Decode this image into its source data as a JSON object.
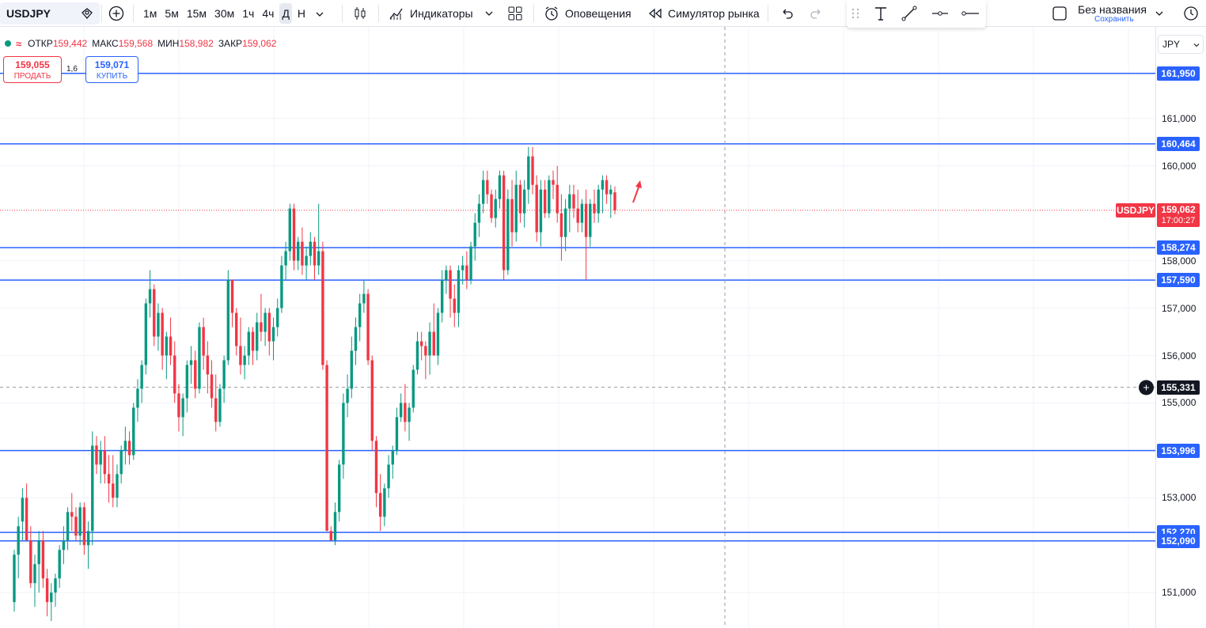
{
  "toolbar": {
    "symbol": "USDJPY",
    "intervals": [
      "1м",
      "5м",
      "15м",
      "30м",
      "1ч",
      "4ч",
      "Д",
      "Н"
    ],
    "active_interval": "Д",
    "indicators_label": "Индикаторы",
    "alerts_label": "Оповещения",
    "replay_label": "Симулятор рынка",
    "layout_name": "Без названия",
    "save_label": "Сохранить"
  },
  "legend": {
    "open_label": "ОТКР",
    "open": "159,442",
    "high_label": "МАКС",
    "high": "159,568",
    "low_label": "МИН",
    "low": "158,982",
    "close_label": "ЗАКР",
    "close": "159,062"
  },
  "trade": {
    "sell_price": "159,055",
    "sell_label": "ПРОДАТЬ",
    "buy_price": "159,071",
    "buy_label": "КУПИТЬ",
    "spread": "1,6"
  },
  "scale": {
    "currency": "JPY",
    "ticks": [
      {
        "label": "161,000",
        "value": 161.0
      },
      {
        "label": "160,000",
        "value": 160.0
      },
      {
        "label": "158,000",
        "value": 158.0
      },
      {
        "label": "157,000",
        "value": 157.0
      },
      {
        "label": "156,000",
        "value": 156.0
      },
      {
        "label": "155,000",
        "value": 155.0
      },
      {
        "label": "153,000",
        "value": 153.0
      },
      {
        "label": "151,000",
        "value": 151.0
      }
    ],
    "levels": [
      {
        "label": "161,950",
        "value": 161.95
      },
      {
        "label": "160,464",
        "value": 160.464
      },
      {
        "label": "158,274",
        "value": 158.274
      },
      {
        "label": "157,590",
        "value": 157.59
      },
      {
        "label": "153,996",
        "value": 153.996
      },
      {
        "label": "152,270",
        "value": 152.27
      },
      {
        "label": "152,090",
        "value": 152.09
      }
    ],
    "last_price": {
      "label": "159,062",
      "value": 159.062,
      "timer": "17:00:27",
      "symbol": "USDJPY"
    },
    "cursor_price": {
      "label": "155,331",
      "value": 155.331
    }
  },
  "colors": {
    "up": "#089981",
    "down": "#f23645",
    "level": "#2962ff",
    "grid": "#f0f3fa"
  },
  "chart_data": {
    "type": "candlestick",
    "symbol": "USDJPY",
    "candles": [
      [
        150.8,
        151.9,
        150.6,
        151.8
      ],
      [
        151.8,
        152.6,
        151.3,
        152.4
      ],
      [
        152.5,
        153.2,
        152.1,
        153.0
      ],
      [
        153.0,
        153.3,
        152.2,
        152.1
      ],
      [
        152.1,
        152.4,
        151.1,
        151.2
      ],
      [
        151.2,
        151.8,
        150.7,
        151.6
      ],
      [
        151.6,
        152.3,
        151.0,
        152.1
      ],
      [
        152.1,
        152.3,
        151.1,
        151.3
      ],
      [
        151.3,
        151.5,
        150.5,
        150.8
      ],
      [
        150.8,
        151.2,
        150.4,
        151.0
      ],
      [
        151.0,
        151.4,
        150.7,
        151.3
      ],
      [
        151.3,
        152.0,
        151.1,
        151.9
      ],
      [
        151.9,
        152.4,
        151.6,
        152.1
      ],
      [
        152.1,
        152.8,
        151.9,
        152.7
      ],
      [
        152.7,
        153.1,
        152.3,
        152.6
      ],
      [
        152.6,
        152.8,
        152.1,
        152.2
      ],
      [
        152.2,
        152.9,
        152.0,
        152.8
      ],
      [
        152.8,
        152.9,
        151.8,
        152.0
      ],
      [
        152.0,
        152.5,
        151.5,
        152.3
      ],
      [
        152.3,
        154.4,
        152.0,
        154.1
      ],
      [
        154.1,
        154.3,
        153.5,
        153.7
      ],
      [
        153.7,
        154.2,
        153.3,
        154.0
      ],
      [
        154.0,
        154.3,
        153.3,
        153.5
      ],
      [
        153.5,
        153.9,
        152.9,
        153.3
      ],
      [
        153.3,
        153.9,
        152.8,
        153.0
      ],
      [
        153.0,
        153.7,
        152.8,
        153.5
      ],
      [
        153.5,
        154.1,
        153.3,
        154.0
      ],
      [
        154.0,
        154.5,
        153.7,
        154.2
      ],
      [
        154.2,
        154.4,
        153.7,
        153.9
      ],
      [
        153.9,
        155.0,
        153.8,
        154.9
      ],
      [
        154.9,
        155.5,
        154.6,
        155.3
      ],
      [
        155.3,
        155.9,
        155.0,
        155.8
      ],
      [
        155.8,
        157.2,
        155.6,
        157.1
      ],
      [
        157.1,
        157.8,
        156.8,
        157.4
      ],
      [
        157.4,
        157.5,
        156.2,
        156.4
      ],
      [
        156.4,
        157.1,
        156.1,
        156.9
      ],
      [
        156.9,
        157.0,
        155.7,
        156.0
      ],
      [
        156.0,
        156.5,
        155.5,
        156.4
      ],
      [
        156.4,
        156.8,
        155.8,
        156.0
      ],
      [
        156.0,
        156.3,
        155.0,
        155.2
      ],
      [
        155.2,
        155.4,
        154.4,
        154.7
      ],
      [
        154.7,
        155.2,
        154.3,
        155.1
      ],
      [
        155.1,
        155.9,
        154.8,
        155.8
      ],
      [
        155.8,
        156.2,
        155.4,
        155.9
      ],
      [
        155.9,
        156.1,
        155.1,
        155.3
      ],
      [
        155.3,
        156.7,
        155.2,
        156.6
      ],
      [
        156.6,
        156.8,
        155.7,
        156.0
      ],
      [
        156.0,
        156.3,
        155.2,
        155.6
      ],
      [
        155.6,
        155.9,
        154.9,
        155.1
      ],
      [
        155.1,
        155.6,
        154.4,
        154.6
      ],
      [
        154.6,
        155.4,
        154.5,
        155.3
      ],
      [
        155.3,
        156.0,
        155.0,
        155.9
      ],
      [
        155.9,
        157.8,
        155.8,
        157.6
      ],
      [
        157.6,
        157.6,
        156.6,
        156.9
      ],
      [
        156.9,
        157.0,
        156.0,
        156.2
      ],
      [
        156.2,
        156.8,
        155.6,
        155.8
      ],
      [
        155.8,
        156.2,
        155.5,
        156.0
      ],
      [
        156.0,
        156.6,
        155.8,
        156.5
      ],
      [
        156.5,
        156.6,
        155.8,
        156.1
      ],
      [
        156.1,
        156.9,
        155.9,
        156.7
      ],
      [
        156.7,
        157.3,
        156.3,
        156.5
      ],
      [
        156.5,
        157.0,
        156.2,
        156.9
      ],
      [
        156.9,
        157.0,
        156.0,
        156.3
      ],
      [
        156.3,
        156.8,
        155.9,
        156.6
      ],
      [
        156.6,
        157.2,
        156.4,
        157.0
      ],
      [
        157.0,
        158.1,
        156.9,
        157.9
      ],
      [
        157.9,
        158.4,
        157.6,
        158.2
      ],
      [
        158.2,
        159.2,
        158.0,
        159.1
      ],
      [
        159.1,
        159.2,
        157.8,
        158.0
      ],
      [
        158.0,
        158.5,
        157.8,
        158.4
      ],
      [
        158.4,
        158.7,
        157.7,
        157.9
      ],
      [
        157.9,
        158.3,
        157.6,
        158.1
      ],
      [
        158.1,
        158.6,
        157.9,
        158.4
      ],
      [
        158.4,
        158.5,
        157.6,
        157.9
      ],
      [
        157.9,
        159.2,
        157.7,
        158.2
      ],
      [
        158.2,
        158.4,
        155.7,
        155.8
      ],
      [
        155.8,
        155.9,
        152.3,
        152.3
      ],
      [
        152.3,
        152.4,
        152.1,
        152.1
      ],
      [
        152.1,
        152.9,
        152.0,
        152.7
      ],
      [
        152.7,
        153.8,
        152.5,
        153.7
      ],
      [
        153.7,
        155.2,
        153.4,
        155.0
      ],
      [
        155.0,
        155.6,
        154.7,
        155.3
      ],
      [
        155.3,
        156.4,
        155.1,
        156.1
      ],
      [
        156.1,
        156.8,
        155.8,
        156.6
      ],
      [
        156.6,
        157.3,
        156.3,
        157.1
      ],
      [
        157.1,
        157.6,
        156.9,
        157.3
      ],
      [
        157.3,
        157.4,
        155.8,
        155.9
      ],
      [
        155.9,
        156.0,
        154.0,
        154.2
      ],
      [
        154.2,
        154.3,
        152.8,
        153.1
      ],
      [
        153.1,
        153.5,
        152.3,
        152.6
      ],
      [
        152.6,
        153.3,
        152.4,
        153.2
      ],
      [
        153.2,
        153.9,
        153.0,
        153.7
      ],
      [
        153.7,
        154.1,
        153.4,
        154.0
      ],
      [
        154.0,
        154.9,
        153.9,
        154.7
      ],
      [
        154.7,
        155.2,
        154.6,
        155.0
      ],
      [
        155.0,
        155.4,
        154.4,
        154.6
      ],
      [
        154.6,
        155.0,
        154.2,
        154.9
      ],
      [
        154.9,
        155.8,
        154.8,
        155.7
      ],
      [
        155.7,
        156.5,
        155.6,
        156.3
      ],
      [
        156.3,
        156.5,
        155.9,
        156.2
      ],
      [
        156.2,
        156.3,
        155.5,
        156.0
      ],
      [
        156.0,
        156.7,
        155.6,
        156.5
      ],
      [
        156.5,
        157.1,
        156.1,
        156.0
      ],
      [
        156.0,
        157.0,
        155.8,
        156.9
      ],
      [
        156.9,
        157.8,
        156.7,
        157.6
      ],
      [
        157.6,
        157.9,
        157.3,
        157.8
      ],
      [
        157.8,
        157.9,
        156.8,
        157.2
      ],
      [
        157.2,
        157.5,
        156.6,
        156.9
      ],
      [
        156.9,
        157.9,
        156.6,
        157.8
      ],
      [
        157.8,
        158.1,
        157.5,
        157.9
      ],
      [
        157.9,
        158.2,
        157.4,
        157.6
      ],
      [
        157.6,
        158.4,
        157.5,
        158.3
      ],
      [
        158.3,
        159.0,
        158.0,
        158.8
      ],
      [
        158.8,
        159.4,
        158.5,
        159.2
      ],
      [
        159.2,
        159.9,
        159.0,
        159.7
      ],
      [
        159.7,
        159.9,
        159.2,
        159.4
      ],
      [
        159.4,
        159.5,
        158.8,
        158.9
      ],
      [
        158.9,
        159.5,
        158.7,
        159.3
      ],
      [
        159.3,
        159.9,
        159.1,
        159.8
      ],
      [
        159.8,
        159.9,
        157.6,
        157.8
      ],
      [
        157.8,
        159.5,
        157.7,
        159.3
      ],
      [
        159.3,
        159.7,
        158.3,
        158.6
      ],
      [
        158.6,
        159.9,
        158.4,
        159.6
      ],
      [
        159.6,
        159.7,
        158.8,
        159.0
      ],
      [
        159.0,
        159.7,
        158.7,
        159.5
      ],
      [
        159.5,
        160.4,
        159.2,
        160.2
      ],
      [
        160.2,
        160.4,
        159.4,
        159.6
      ],
      [
        159.6,
        159.8,
        158.4,
        158.6
      ],
      [
        158.6,
        159.7,
        158.3,
        159.5
      ],
      [
        159.5,
        159.7,
        158.9,
        159.0
      ],
      [
        159.0,
        159.8,
        158.9,
        159.7
      ],
      [
        159.7,
        159.9,
        159.3,
        159.6
      ],
      [
        159.6,
        160.0,
        158.8,
        159.0
      ],
      [
        159.0,
        159.4,
        158.0,
        158.5
      ],
      [
        158.5,
        159.3,
        158.2,
        159.1
      ],
      [
        159.1,
        159.6,
        158.6,
        159.4
      ],
      [
        159.4,
        159.6,
        158.9,
        159.1
      ],
      [
        159.1,
        159.5,
        158.6,
        158.8
      ],
      [
        158.8,
        159.3,
        158.6,
        159.2
      ],
      [
        159.2,
        159.5,
        157.6,
        158.5
      ],
      [
        158.5,
        159.3,
        158.3,
        159.2
      ],
      [
        159.2,
        159.5,
        158.8,
        159.0
      ],
      [
        159.0,
        159.6,
        158.8,
        159.5
      ],
      [
        159.5,
        159.8,
        159.0,
        159.7
      ],
      [
        159.7,
        159.8,
        159.2,
        159.4
      ],
      [
        159.4,
        159.6,
        158.9,
        159.5
      ],
      [
        159.442,
        159.568,
        158.982,
        159.062
      ]
    ]
  }
}
